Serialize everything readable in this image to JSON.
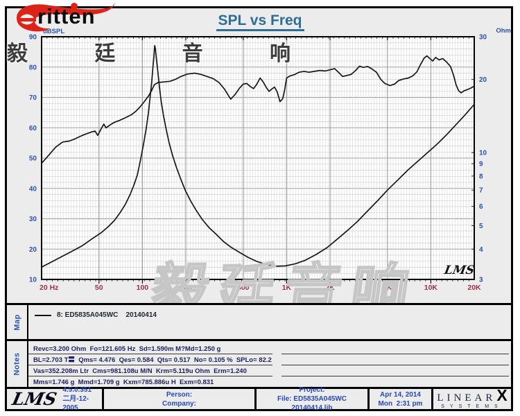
{
  "logo": {
    "brand_text": "ritten",
    "brand_cjk": "毅 廷 音 响"
  },
  "chart_data": {
    "type": "line",
    "title": "SPL vs Freq",
    "x_axis": {
      "unit": "Hz",
      "scale": "log",
      "min": 20,
      "max": 20000,
      "tick_labels": [
        "20 Hz",
        "50",
        "100",
        "200",
        "500",
        "1K",
        "2K",
        "5K",
        "10K",
        "20K"
      ],
      "tick_freqs": [
        20,
        50,
        100,
        200,
        500,
        1000,
        2000,
        5000,
        10000,
        20000
      ],
      "major_grid_freqs": [
        50,
        100,
        200,
        500,
        1000,
        2000,
        5000,
        10000
      ]
    },
    "y_left": {
      "label": "dBSPL",
      "scale": "linear",
      "min": 10,
      "max": 90,
      "ticks": [
        90,
        80,
        70,
        60,
        50,
        40,
        30,
        20,
        10
      ],
      "minor_step_db": 2
    },
    "y_right": {
      "label": "Ohm",
      "scale": "log",
      "min": 3,
      "max": 30,
      "ticks": [
        30,
        20,
        10,
        9,
        8,
        7,
        6,
        5,
        4,
        3
      ]
    },
    "grid": "on",
    "tick_label_color": "#2a52b0",
    "freq_label_color": "#9e2f48",
    "curve_color": "#151515",
    "series": [
      {
        "name": "SPL (dBSPL)",
        "axis": "left",
        "points": [
          [
            20,
            48.3
          ],
          [
            22,
            50.5
          ],
          [
            25,
            53.6
          ],
          [
            28,
            55.3
          ],
          [
            31,
            55.6
          ],
          [
            34,
            56.3
          ],
          [
            38,
            57.4
          ],
          [
            42,
            58.2
          ],
          [
            45,
            58.7
          ],
          [
            47,
            58.9
          ],
          [
            49,
            57.5
          ],
          [
            52,
            59.8
          ],
          [
            54,
            61.2
          ],
          [
            56,
            60.0
          ],
          [
            60,
            61.0
          ],
          [
            64,
            61.8
          ],
          [
            70,
            62.5
          ],
          [
            77,
            63.4
          ],
          [
            84,
            64.3
          ],
          [
            90,
            65.4
          ],
          [
            96,
            66.8
          ],
          [
            103,
            68.6
          ],
          [
            110,
            70.4
          ],
          [
            116,
            72.3
          ],
          [
            121,
            74.2
          ],
          [
            128,
            74.9
          ],
          [
            140,
            75.1
          ],
          [
            155,
            75.3
          ],
          [
            170,
            76.0
          ],
          [
            185,
            76.9
          ],
          [
            205,
            77.7
          ],
          [
            230,
            78.0
          ],
          [
            255,
            77.6
          ],
          [
            285,
            76.8
          ],
          [
            310,
            76.2
          ],
          [
            340,
            74.9
          ],
          [
            370,
            72.8
          ],
          [
            410,
            69.4
          ],
          [
            440,
            71.0
          ],
          [
            470,
            73.0
          ],
          [
            500,
            74.4
          ],
          [
            530,
            74.6
          ],
          [
            560,
            73.6
          ],
          [
            590,
            72.9
          ],
          [
            620,
            74.3
          ],
          [
            655,
            76.4
          ],
          [
            690,
            75.0
          ],
          [
            720,
            73.4
          ],
          [
            755,
            72.0
          ],
          [
            790,
            72.8
          ],
          [
            825,
            73.4
          ],
          [
            860,
            71.8
          ],
          [
            900,
            68.6
          ],
          [
            940,
            69.6
          ],
          [
            970,
            72.5
          ],
          [
            1000,
            76.4
          ],
          [
            1060,
            77.1
          ],
          [
            1130,
            77.5
          ],
          [
            1220,
            78.3
          ],
          [
            1320,
            78.6
          ],
          [
            1430,
            78.3
          ],
          [
            1560,
            78.6
          ],
          [
            1700,
            78.9
          ],
          [
            1850,
            78.7
          ],
          [
            2000,
            79.1
          ],
          [
            2150,
            79.5
          ],
          [
            2300,
            78.2
          ],
          [
            2450,
            76.9
          ],
          [
            2600,
            77.2
          ],
          [
            2800,
            77.6
          ],
          [
            3000,
            78.8
          ],
          [
            3200,
            80.3
          ],
          [
            3400,
            79.9
          ],
          [
            3650,
            80.2
          ],
          [
            3900,
            79.4
          ],
          [
            4200,
            78.3
          ],
          [
            4500,
            75.9
          ],
          [
            4800,
            74.6
          ],
          [
            5200,
            73.9
          ],
          [
            5600,
            74.4
          ],
          [
            6000,
            75.6
          ],
          [
            6500,
            76.1
          ],
          [
            7000,
            76.4
          ],
          [
            7500,
            77.1
          ],
          [
            8000,
            78.4
          ],
          [
            8500,
            80.9
          ],
          [
            9000,
            83.0
          ],
          [
            9400,
            83.7
          ],
          [
            9800,
            82.9
          ],
          [
            10300,
            82.0
          ],
          [
            10800,
            83.2
          ],
          [
            11400,
            82.4
          ],
          [
            12100,
            82.8
          ],
          [
            12900,
            81.6
          ],
          [
            13700,
            80.2
          ],
          [
            14400,
            77.2
          ],
          [
            15000,
            74.0
          ],
          [
            15600,
            72.2
          ],
          [
            16200,
            71.5
          ],
          [
            17000,
            72.2
          ],
          [
            18000,
            72.6
          ],
          [
            19000,
            73.1
          ],
          [
            20000,
            73.7
          ]
        ]
      },
      {
        "name": "Impedance (Ohm)",
        "axis": "right",
        "points": [
          [
            20,
            3.37
          ],
          [
            23,
            3.52
          ],
          [
            27,
            3.7
          ],
          [
            32,
            3.9
          ],
          [
            38,
            4.12
          ],
          [
            45,
            4.42
          ],
          [
            52,
            4.68
          ],
          [
            58,
            4.95
          ],
          [
            64,
            5.25
          ],
          [
            70,
            5.65
          ],
          [
            76,
            6.1
          ],
          [
            82,
            6.7
          ],
          [
            87,
            7.3
          ],
          [
            92,
            8.05
          ],
          [
            97,
            9.3
          ],
          [
            102,
            10.9
          ],
          [
            106,
            12.4
          ],
          [
            110,
            14.5
          ],
          [
            113,
            16.8
          ],
          [
            116,
            19.5
          ],
          [
            118,
            22.0
          ],
          [
            120,
            24.8
          ],
          [
            121.6,
            27.6
          ],
          [
            123,
            26.8
          ],
          [
            125,
            24.5
          ],
          [
            128,
            21.5
          ],
          [
            131,
            18.8
          ],
          [
            135,
            16.2
          ],
          [
            140,
            14.2
          ],
          [
            146,
            12.5
          ],
          [
            153,
            11.0
          ],
          [
            162,
            9.7
          ],
          [
            172,
            8.7
          ],
          [
            184,
            7.8
          ],
          [
            198,
            7.0
          ],
          [
            215,
            6.35
          ],
          [
            235,
            5.8
          ],
          [
            260,
            5.3
          ],
          [
            290,
            4.9
          ],
          [
            325,
            4.6
          ],
          [
            365,
            4.3
          ],
          [
            410,
            4.08
          ],
          [
            470,
            3.88
          ],
          [
            540,
            3.7
          ],
          [
            620,
            3.56
          ],
          [
            720,
            3.46
          ],
          [
            840,
            3.4
          ],
          [
            980,
            3.41
          ],
          [
            1150,
            3.48
          ],
          [
            1350,
            3.6
          ],
          [
            1600,
            3.8
          ],
          [
            1900,
            4.05
          ],
          [
            2250,
            4.4
          ],
          [
            2650,
            4.78
          ],
          [
            3100,
            5.2
          ],
          [
            3650,
            5.75
          ],
          [
            4300,
            6.35
          ],
          [
            5000,
            7.0
          ],
          [
            5900,
            7.7
          ],
          [
            6900,
            8.45
          ],
          [
            8100,
            9.2
          ],
          [
            9500,
            10.0
          ],
          [
            11000,
            10.8
          ],
          [
            12800,
            11.8
          ],
          [
            14900,
            13.0
          ],
          [
            17300,
            14.3
          ],
          [
            20000,
            15.8
          ]
        ]
      }
    ],
    "annotations": {
      "corner_watermark": "LMS"
    }
  },
  "watermark_large": "毅廷音响",
  "map_panel": {
    "label": "Map",
    "legend": "8: ED5835A045WC    20140414"
  },
  "notes_panel": {
    "label": "Notes",
    "lines": [
      "Revc=3.200 Ohm  Fo=121.605 Hz  Sd=1.590m M?Md=1.250 g",
      "BL=2.703 T〓  Qms= 4.476  Qes= 0.584  Qts= 0.517  No= 0.105 %  SPLo= 82.2 dB",
      "Vas=352.208m Ltr  Cms=981.108u M/N  Krm=5.119u Ohm  Erm=1.240",
      "Mms=1.746 g  Mmd=1.709 g  Kxm=785.886u H  Exm=0.831"
    ]
  },
  "footer": {
    "lms_script": "LMS",
    "version": "4.5.0.351",
    "build_date": "二月-12-2005",
    "person_label": "Person:",
    "company_label": "Company:",
    "project_label": "Project:",
    "file_label": "File: ED5835A045WC 20140414.lib",
    "report_date": "Apr 14, 2014",
    "report_time": "Mon  2:31 pm",
    "brand_linear": "LINEAR",
    "brand_x": "X",
    "brand_systems": "SYSTEMS"
  }
}
